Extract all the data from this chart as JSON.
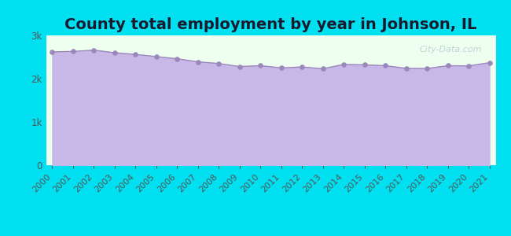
{
  "title": "County total employment by year in Johnson, IL",
  "years": [
    2000,
    2001,
    2002,
    2003,
    2004,
    2005,
    2006,
    2007,
    2008,
    2009,
    2010,
    2011,
    2012,
    2013,
    2014,
    2015,
    2016,
    2017,
    2018,
    2019,
    2020,
    2021
  ],
  "values": [
    2620,
    2630,
    2660,
    2600,
    2560,
    2510,
    2460,
    2390,
    2350,
    2280,
    2300,
    2250,
    2270,
    2230,
    2330,
    2320,
    2300,
    2240,
    2235,
    2300,
    2295,
    2370
  ],
  "ylim": [
    0,
    3000
  ],
  "yticks": [
    0,
    1000,
    2000,
    3000
  ],
  "ytick_labels": [
    "0",
    "1k",
    "2k",
    "3k"
  ],
  "bg_outer": "#00e0f0",
  "bg_chart": "#efffef",
  "fill_color": "#c8b8e8",
  "line_color": "#9b88bb",
  "dot_color": "#9b88bb",
  "title_color": "#1a1a2e",
  "axis_color": "#555555",
  "watermark": "City-Data.com",
  "title_fontsize": 14,
  "tick_fontsize": 8.5
}
